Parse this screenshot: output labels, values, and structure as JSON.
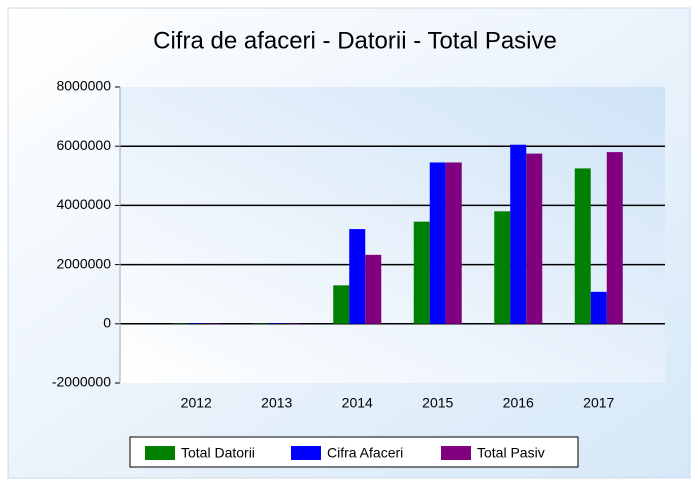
{
  "chart_data": {
    "type": "bar",
    "title": "Cifra de afaceri - Datorii - Total Pasive",
    "categories": [
      "2012",
      "2013",
      "2014",
      "2015",
      "2016",
      "2017"
    ],
    "series": [
      {
        "name": "Total Datorii",
        "color": "#008000",
        "values": [
          10000,
          10000,
          1300000,
          3450000,
          3800000,
          5250000
        ]
      },
      {
        "name": "Cifra Afaceri",
        "color": "#0000ff",
        "values": [
          10000,
          10000,
          3200000,
          5450000,
          6050000,
          1080000
        ]
      },
      {
        "name": "Total Pasiv",
        "color": "#800080",
        "values": [
          10000,
          10000,
          2330000,
          5450000,
          5750000,
          5800000
        ]
      }
    ],
    "ylim": [
      -2000000,
      8000000
    ],
    "yticks": [
      -2000000,
      0,
      2000000,
      4000000,
      6000000,
      8000000
    ],
    "grid": true
  }
}
